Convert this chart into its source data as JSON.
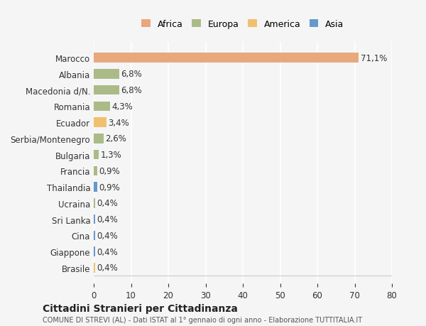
{
  "categories": [
    "Brasile",
    "Giappone",
    "Cina",
    "Sri Lanka",
    "Ucraina",
    "Thailandia",
    "Francia",
    "Bulgaria",
    "Serbia/Montenegro",
    "Ecuador",
    "Romania",
    "Macedonia d/N.",
    "Albania",
    "Marocco"
  ],
  "values": [
    0.4,
    0.4,
    0.4,
    0.4,
    0.4,
    0.9,
    0.9,
    1.3,
    2.6,
    3.4,
    4.3,
    6.8,
    6.8,
    71.1
  ],
  "labels": [
    "0,4%",
    "0,4%",
    "0,4%",
    "0,4%",
    "0,4%",
    "0,9%",
    "0,9%",
    "1,3%",
    "2,6%",
    "3,4%",
    "4,3%",
    "6,8%",
    "6,8%",
    "71,1%"
  ],
  "colors": [
    "#f0c070",
    "#6699cc",
    "#6699cc",
    "#6699cc",
    "#aabb88",
    "#6699cc",
    "#aabb88",
    "#aabb88",
    "#aabb88",
    "#f0c070",
    "#aabb88",
    "#aabb88",
    "#aabb88",
    "#e8a87c"
  ],
  "legend_labels": [
    "Africa",
    "Europa",
    "America",
    "Asia"
  ],
  "legend_colors": [
    "#e8a87c",
    "#aabb88",
    "#f0c070",
    "#6699cc"
  ],
  "title1": "Cittadini Stranieri per Cittadinanza",
  "title2": "COMUNE DI STREVI (AL) - Dati ISTAT al 1° gennaio di ogni anno - Elaborazione TUTTITALIA.IT",
  "xlim": [
    0,
    80
  ],
  "xticks": [
    0,
    10,
    20,
    30,
    40,
    50,
    60,
    70,
    80
  ],
  "background_color": "#f5f5f5",
  "bar_height": 0.6
}
